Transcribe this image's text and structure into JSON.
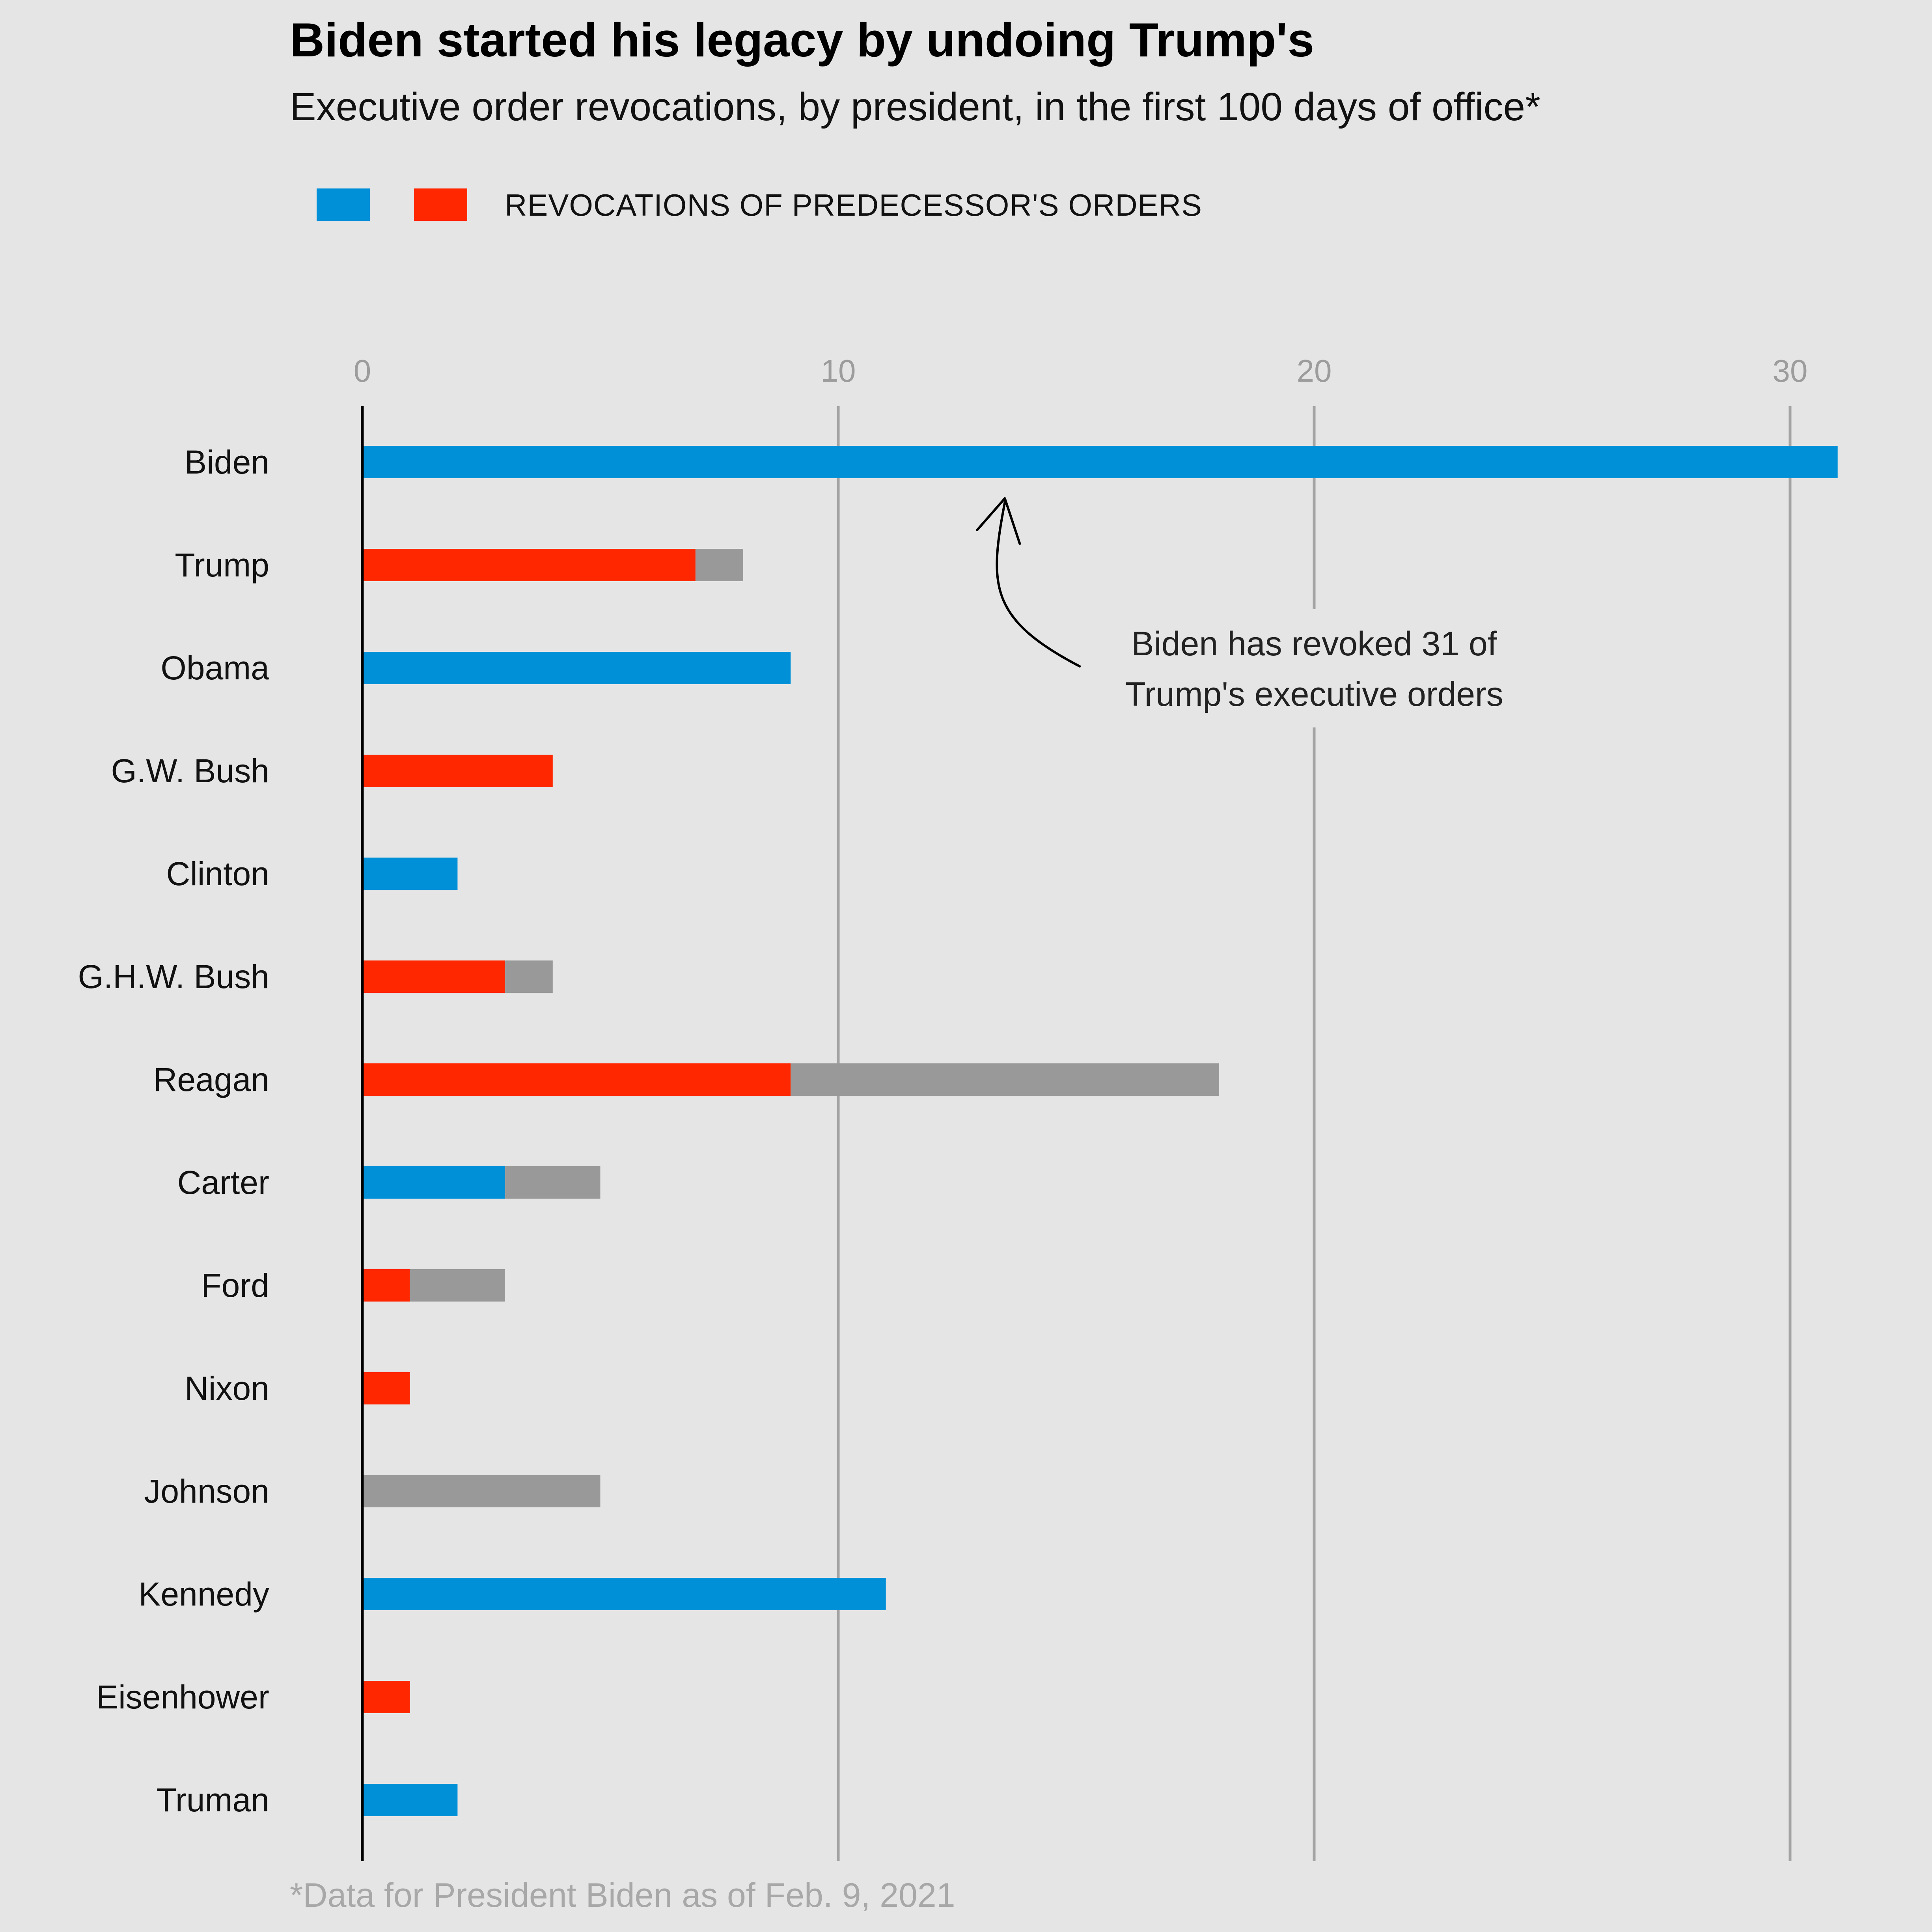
{
  "chart_data": {
    "type": "bar",
    "orientation": "horizontal",
    "stacked": true,
    "title": "Biden started his legacy by undoing Trump's",
    "subtitle": "Executive order revocations, by president, in the first 100 days of office*",
    "legend": {
      "placement": "top-left",
      "label": "REVOCATIONS OF PREDECESSOR'S ORDERS",
      "swatches": [
        {
          "color": "#0090d8"
        },
        {
          "color": "#ff2700"
        }
      ]
    },
    "categories": [
      "Biden",
      "Trump",
      "Obama",
      "G.W. Bush",
      "Clinton",
      "G.H.W. Bush",
      "Reagan",
      "Carter",
      "Ford",
      "Nixon",
      "Johnson",
      "Kennedy",
      "Eisenhower",
      "Truman"
    ],
    "series": [
      {
        "color": "#0090d8",
        "values": [
          31,
          0,
          9,
          0,
          2,
          0,
          0,
          3,
          0,
          0,
          0,
          11,
          0,
          2
        ]
      },
      {
        "color": "#ff2700",
        "values": [
          0,
          7,
          0,
          4,
          0,
          3,
          9,
          0,
          1,
          1,
          0,
          0,
          1,
          0
        ]
      },
      {
        "color": "#999999",
        "values": [
          0,
          1,
          0,
          0,
          0,
          1,
          9,
          2,
          2,
          0,
          5,
          0,
          0,
          0
        ]
      }
    ],
    "xlim": [
      0,
      31
    ],
    "xticks": [
      0,
      10,
      20,
      30
    ],
    "grid": "vertical",
    "annotation": {
      "lines": [
        "Biden has revoked 31 of",
        "Trump's executive orders"
      ],
      "x": 20,
      "points_to": {
        "category": "Biden",
        "x": 13.5
      }
    },
    "footnote": "*Data for President Biden as of Feb. 9, 2021"
  }
}
